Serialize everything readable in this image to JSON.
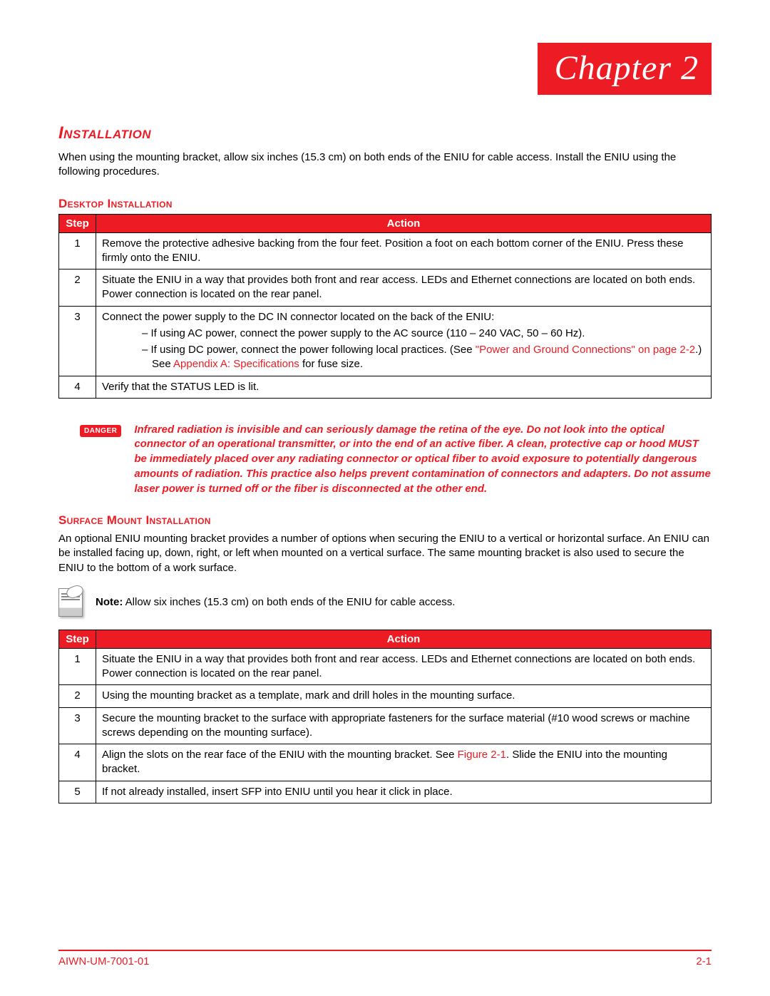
{
  "header": {
    "chapter_word": "Chapter",
    "chapter_num": "2"
  },
  "section_title": "Installation",
  "intro": "When using the mounting bracket, allow six inches (15.3 cm) on both ends of the ENIU for cable access. Install the ENIU using the following procedures.",
  "desktop": {
    "heading": "Desktop Installation",
    "col_step": "Step",
    "col_action": "Action",
    "rows": [
      {
        "n": "1",
        "a": "Remove the protective adhesive backing from the four feet. Position a foot on each bottom corner of the ENIU. Press these firmly onto the ENIU."
      },
      {
        "n": "2",
        "a": "Situate the ENIU in a way that provides both front and rear access. LEDs and Ethernet connections are located on both ends. Power connection is located on the rear panel."
      },
      {
        "n": "3",
        "a_line1": "Connect the power supply to the DC IN connector located on the back of the ENIU:",
        "a_b1": "– If using AC power, connect the power supply to the AC source (110 – 240 VAC, 50 – 60 Hz).",
        "a_b2a": "– If using DC power, connect the power following local practices. (See ",
        "a_b2_link1": "\"Power and Ground Connections\" on page 2-2",
        "a_b2b": ".) See ",
        "a_b2_link2": "Appendix A: Specifications",
        "a_b2c": " for fuse size."
      },
      {
        "n": "4",
        "a": "Verify that the STATUS LED is lit."
      }
    ]
  },
  "danger": {
    "badge": "DANGER",
    "text": "Infrared radiation is invisible and can seriously damage the retina of the eye. Do not look into the optical connector of an operational transmitter, or into the end of an active fiber. A clean, protective cap or hood MUST be immediately placed over any radiating connector or optical fiber to avoid exposure to potentially dangerous amounts of radiation. This practice also helps prevent contamination of connectors and adapters. Do not assume laser power is turned off or the fiber is disconnected at the other end."
  },
  "surface": {
    "heading": "Surface Mount Installation",
    "intro": "An optional ENIU mounting bracket provides a number of options when securing the ENIU to a vertical or horizontal surface. An ENIU can be installed facing up, down, right, or left when mounted on a vertical surface. The same mounting bracket is also used to secure the ENIU to the bottom of a work surface.",
    "note_label": "Note:",
    "note_text": " Allow six inches (15.3 cm) on both ends of the ENIU for cable access.",
    "col_step": "Step",
    "col_action": "Action",
    "rows": [
      {
        "n": "1",
        "a": "Situate the ENIU in a way that provides both front and rear access. LEDs and Ethernet connections are located on both ends. Power connection is located on the rear panel."
      },
      {
        "n": "2",
        "a": "Using the mounting bracket as a template, mark and drill holes in the mounting surface."
      },
      {
        "n": "3",
        "a": "Secure the mounting bracket to the surface with appropriate fasteners for the surface material (#10 wood screws or machine screws depending on the mounting surface)."
      },
      {
        "n": "4",
        "a_pre": "Align the slots on the rear face of the ENIU with the mounting bracket. See ",
        "a_link": "Figure 2-1",
        "a_post": ". Slide the ENIU into the mounting bracket."
      },
      {
        "n": "5",
        "a": "If not already installed, insert SFP into ENIU until you hear it click in place."
      }
    ]
  },
  "footer": {
    "doc": "AIWN-UM-7001-01",
    "page": "2-1"
  },
  "colors": {
    "primary": "#ed1c24",
    "text": "#000000",
    "background": "#ffffff"
  }
}
